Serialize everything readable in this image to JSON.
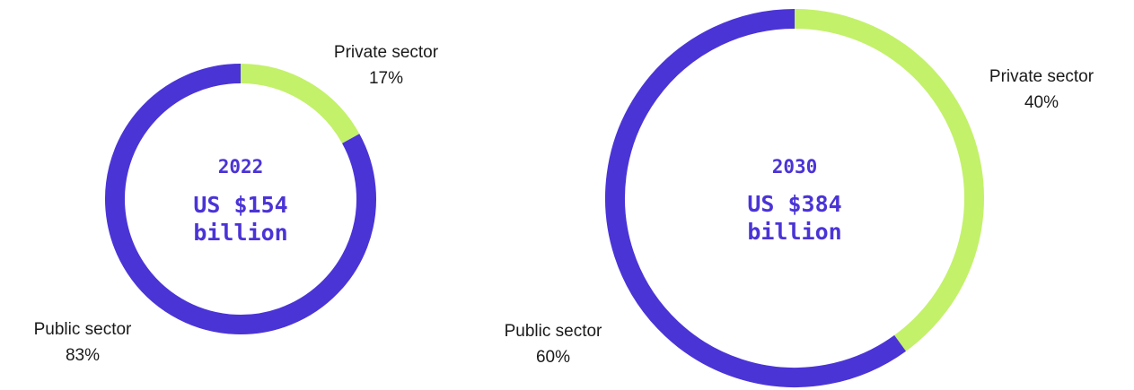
{
  "chart_data": [
    {
      "type": "pie",
      "variant": "donut",
      "center_title": "2022",
      "center_lines": [
        "US $154",
        "billion"
      ],
      "slices": [
        {
          "label": "Private sector",
          "value": 17,
          "value_label": "17%",
          "color": "#c3f16a"
        },
        {
          "label": "Public sector",
          "value": 83,
          "value_label": "83%",
          "color": "#4a34d6"
        }
      ]
    },
    {
      "type": "pie",
      "variant": "donut",
      "center_title": "2030",
      "center_lines": [
        "US $384",
        "billion"
      ],
      "slices": [
        {
          "label": "Private sector",
          "value": 40,
          "value_label": "40%",
          "color": "#c3f16a"
        },
        {
          "label": "Public sector",
          "value": 60,
          "value_label": "60%",
          "color": "#4a34d6"
        }
      ]
    }
  ]
}
